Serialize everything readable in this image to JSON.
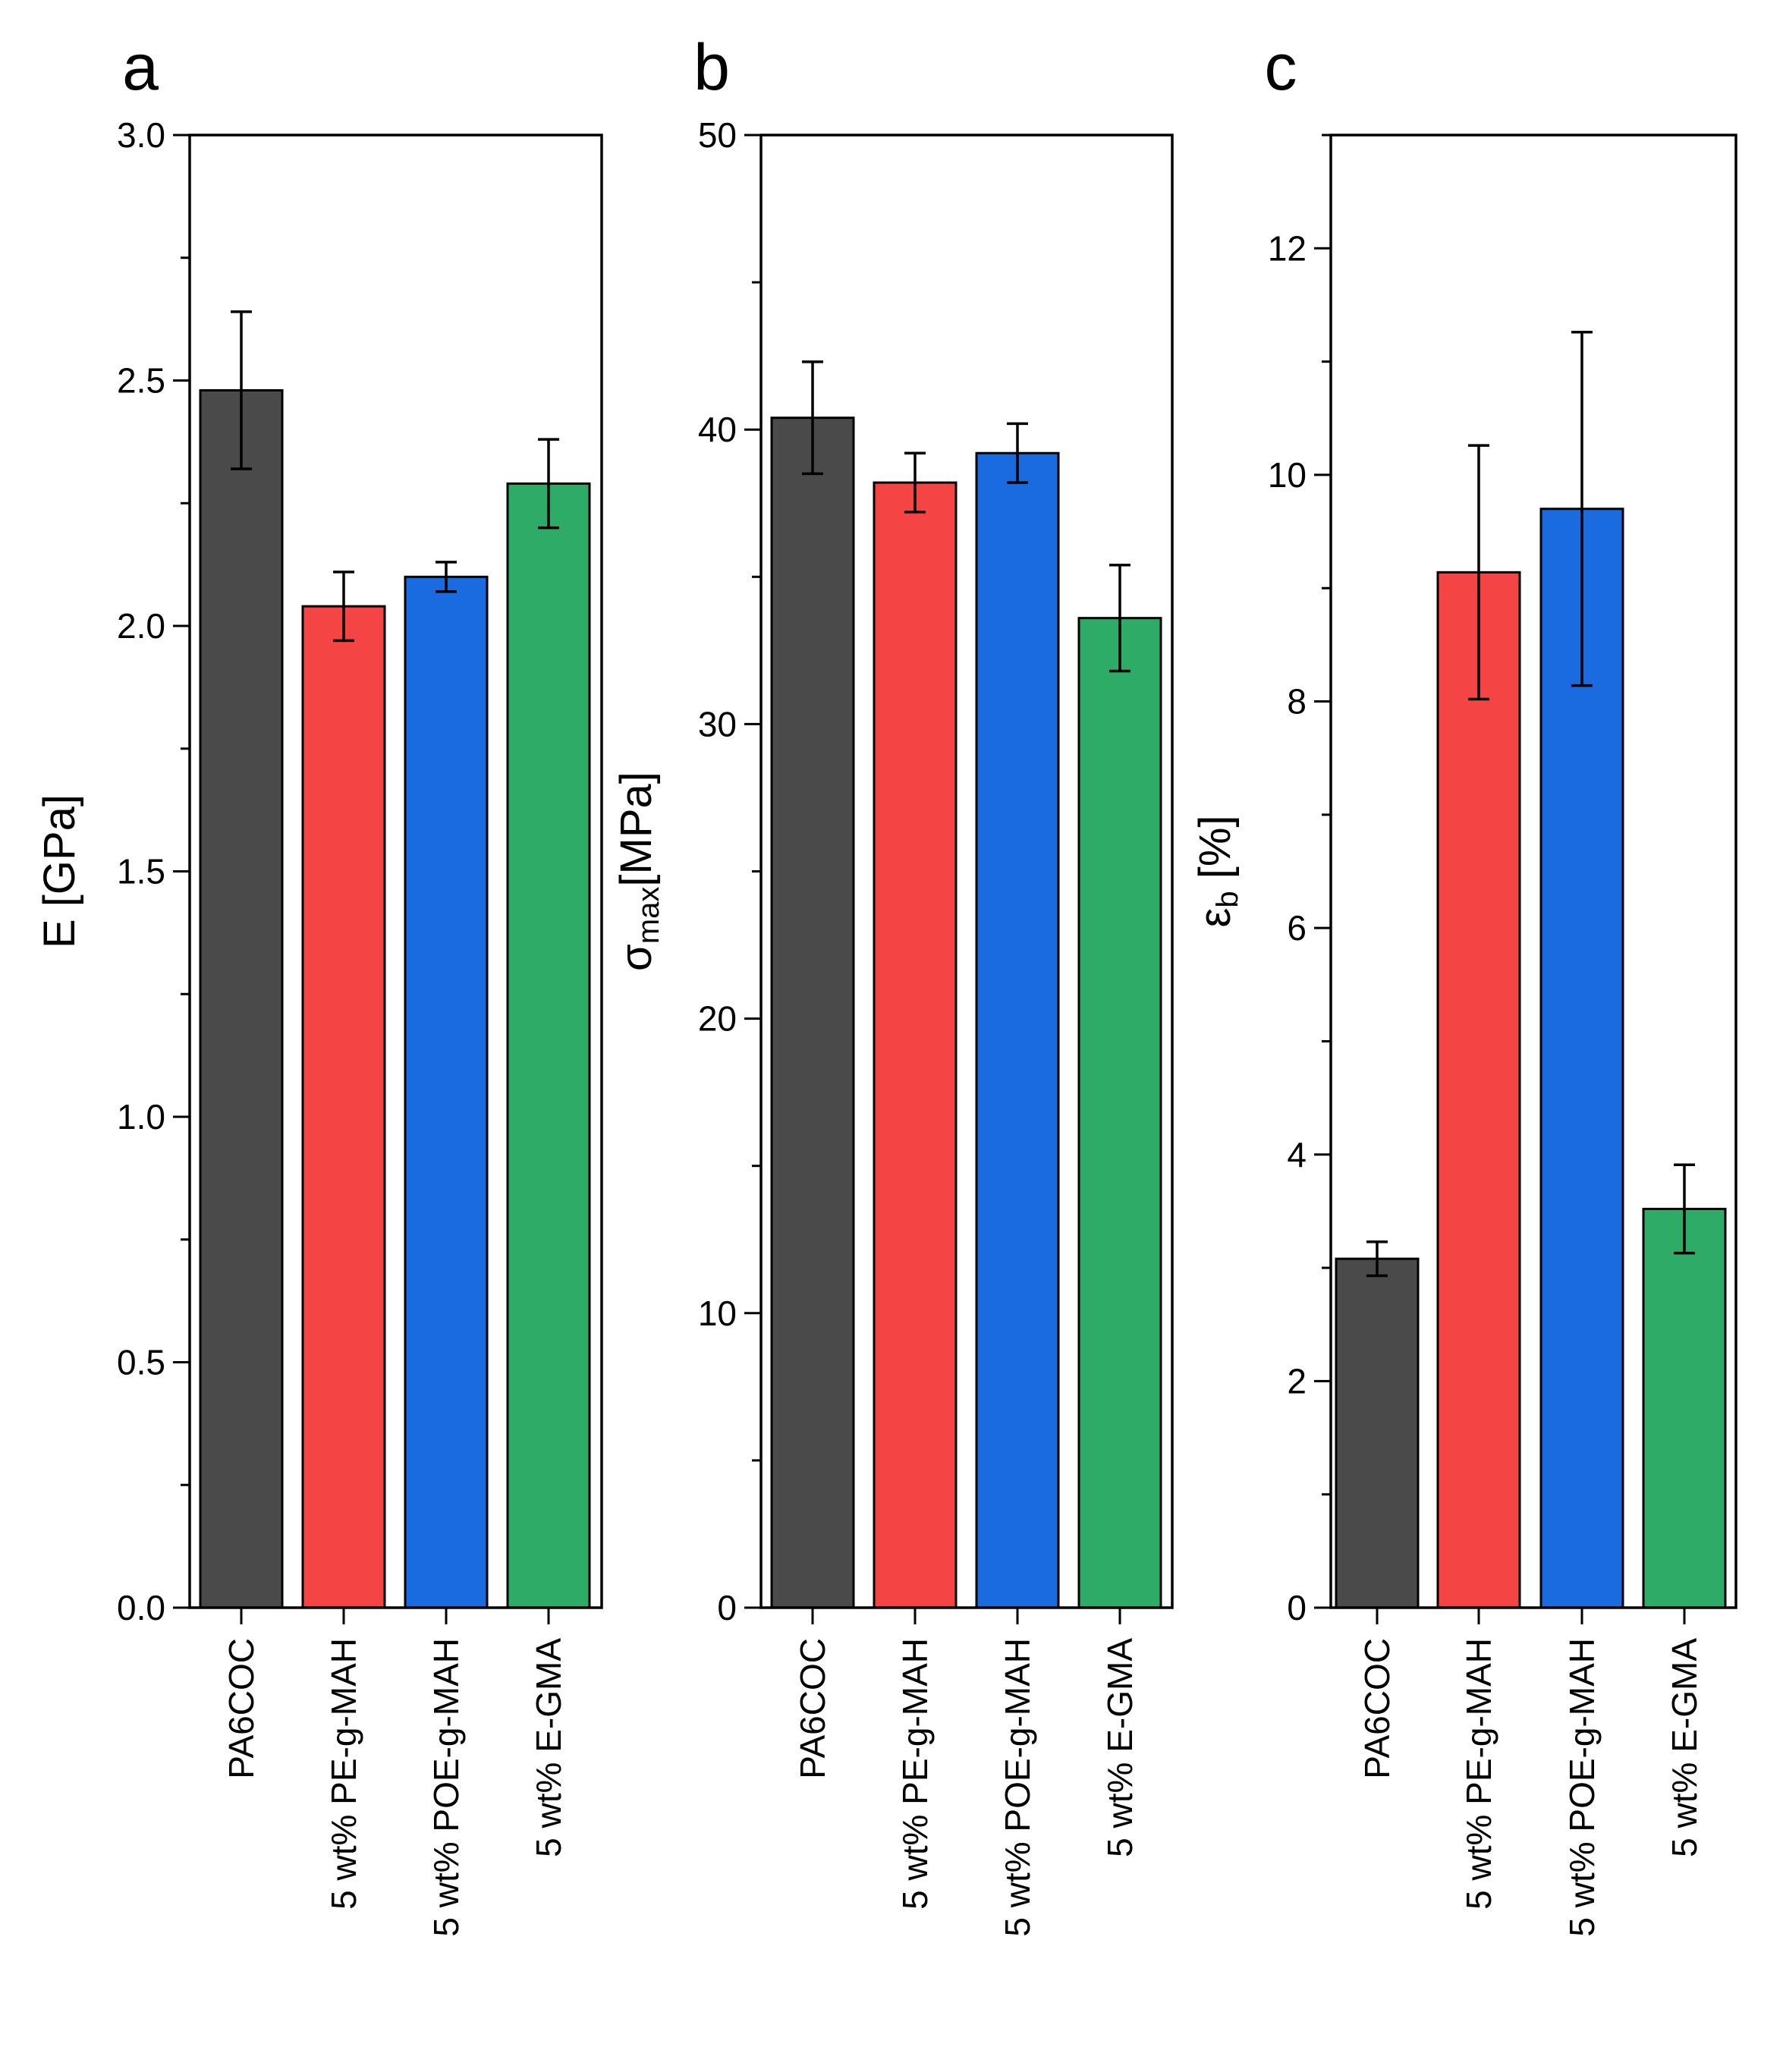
{
  "figure": {
    "background": "#ffffff"
  },
  "chart_data": [
    {
      "type": "bar",
      "panel_label": "a",
      "ylabel": "E [GPa]",
      "ylabel_main": "E [GPa]",
      "ylabel_sub": "",
      "ylabel_tail": "",
      "categories": [
        "PA6COC",
        "5 wt% PE-g-MAH",
        "5 wt% POE-g-MAH",
        "5 wt% E-GMA"
      ],
      "values": [
        2.48,
        2.04,
        2.1,
        2.29
      ],
      "errors": [
        0.16,
        0.07,
        0.03,
        0.09
      ],
      "colors": [
        "#4a4a4a",
        "#f44444",
        "#1a6be0",
        "#2eab67"
      ],
      "ylim": [
        0,
        3.0
      ],
      "major_ticks": [
        0,
        0.5,
        1.0,
        1.5,
        2.0,
        2.5,
        3.0
      ],
      "tick_labels": [
        "0.0",
        "0.5",
        "1.0",
        "1.5",
        "2.0",
        "2.5",
        "3.0"
      ],
      "minor_step": 0.25
    },
    {
      "type": "bar",
      "panel_label": "b",
      "ylabel": "σmax[MPa]",
      "ylabel_main": "σ",
      "ylabel_sub": "max",
      "ylabel_tail": "[MPa]",
      "categories": [
        "PA6COC",
        "5 wt% PE-g-MAH",
        "5 wt% POE-g-MAH",
        "5 wt% E-GMA"
      ],
      "values": [
        40.4,
        38.2,
        39.2,
        33.6
      ],
      "errors": [
        1.9,
        1.0,
        1.0,
        1.8
      ],
      "colors": [
        "#4a4a4a",
        "#f44444",
        "#1a6be0",
        "#2eab67"
      ],
      "ylim": [
        0,
        50
      ],
      "major_ticks": [
        0,
        10,
        20,
        30,
        40,
        50
      ],
      "tick_labels": [
        "0",
        "10",
        "20",
        "30",
        "40",
        "50"
      ],
      "minor_step": 5
    },
    {
      "type": "bar",
      "panel_label": "c",
      "ylabel": "εb [%]",
      "ylabel_main": "ε",
      "ylabel_sub": "b",
      "ylabel_tail": " [%]",
      "categories": [
        "PA6COC",
        "5 wt% PE-g-MAH",
        "5 wt% POE-g-MAH",
        "5 wt% E-GMA"
      ],
      "values": [
        3.08,
        9.14,
        9.7,
        3.52
      ],
      "errors": [
        0.15,
        1.12,
        1.56,
        0.39
      ],
      "colors": [
        "#4a4a4a",
        "#f44444",
        "#1a6be0",
        "#2eab67"
      ],
      "ylim": [
        0,
        13
      ],
      "major_ticks": [
        0,
        2,
        4,
        6,
        8,
        10,
        12
      ],
      "tick_labels": [
        "0",
        "2",
        "4",
        "6",
        "8",
        "10",
        "12"
      ],
      "minor_step": 1
    }
  ]
}
